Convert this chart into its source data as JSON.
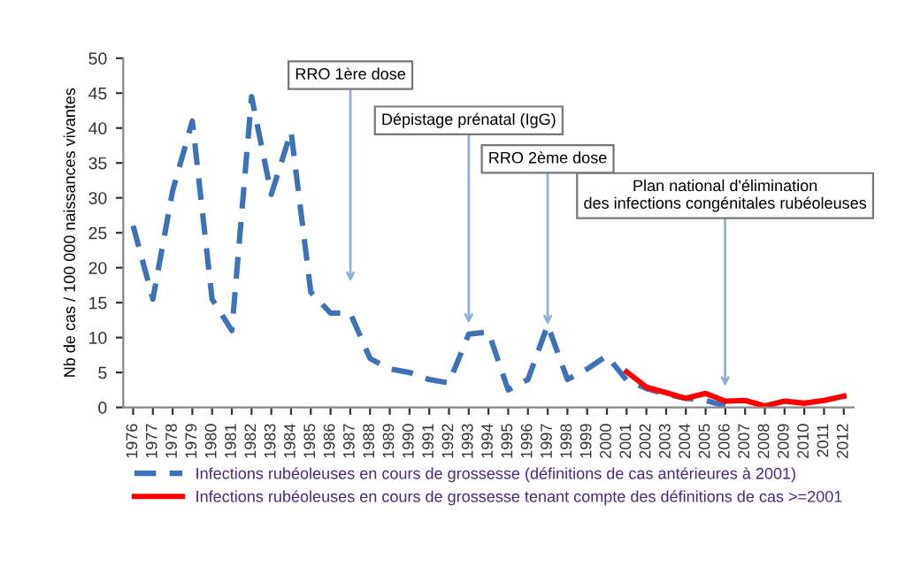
{
  "chart_data": {
    "type": "line",
    "ylabel": "Nb de cas / 100 000 naissances vivantes",
    "categories": [
      "1976",
      "1977",
      "1978",
      "1979",
      "1980",
      "1981",
      "1982",
      "1983",
      "1984",
      "1985",
      "1986",
      "1987",
      "1988",
      "1989",
      "1990",
      "1991",
      "1992",
      "1993",
      "1994",
      "1995",
      "1996",
      "1997",
      "1998",
      "1999",
      "2000",
      "2001",
      "2002",
      "2003",
      "2004",
      "2005",
      "2006",
      "2007",
      "2008",
      "2009",
      "2010",
      "2011",
      "2012"
    ],
    "series": [
      {
        "name": "Infections rubéoleuses en cours de grossesse (définitions de cas antérieures à 2001)",
        "color": "#3d72b8",
        "line_style": "dashed",
        "values": [
          26,
          15.5,
          31,
          41,
          15.5,
          11,
          44.5,
          30.5,
          39.5,
          16.5,
          13.5,
          13.5,
          7,
          5.5,
          5,
          4,
          3.5,
          10.5,
          10.8,
          2.5,
          4,
          11.8,
          4,
          5.5,
          7.4,
          3.9,
          2.7,
          1.9,
          1.3,
          1.0,
          0.2,
          null,
          null,
          null,
          null,
          null,
          null
        ]
      },
      {
        "name": "Infections rubéoleuses en cours de grossesse tenant compte des définitions de cas >=2001",
        "color": "#ff0000",
        "line_style": "solid",
        "values": [
          null,
          null,
          null,
          null,
          null,
          null,
          null,
          null,
          null,
          null,
          null,
          null,
          null,
          null,
          null,
          null,
          null,
          null,
          null,
          null,
          null,
          null,
          null,
          null,
          null,
          5.1,
          2.9,
          2.1,
          1.3,
          2.0,
          0.9,
          1.0,
          0.2,
          0.9,
          0.6,
          1.0,
          1.6
        ]
      }
    ],
    "ylim": [
      0,
      50
    ],
    "yticks": [
      0,
      5,
      10,
      15,
      20,
      25,
      30,
      35,
      40,
      45,
      50
    ],
    "grid": false,
    "legend": "bottom",
    "annotations": [
      "RRO 1ère dose",
      "Dépistage prénatal (IgG)",
      {
        "text": "RRO 2ème dose",
        "x": "1997",
        "y": 11.8
      },
      "Plan national d'élimination\ndes infections congénitales rubéoleuses"
    ]
  }
}
